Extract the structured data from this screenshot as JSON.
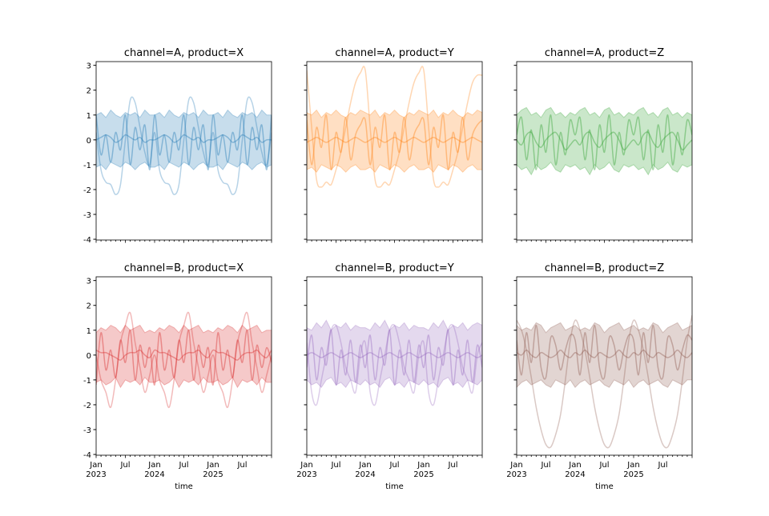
{
  "chart_data": {
    "type": "line",
    "layout": "2x3 facet grid",
    "xlabel": "time",
    "ylabel": "",
    "ylim": [
      -4.03,
      3.15
    ],
    "yticks": [
      -4,
      -3,
      -2,
      -1,
      0,
      1,
      2,
      3
    ],
    "xlim": [
      "2023-01",
      "2026-01"
    ],
    "xticks": [
      {
        "date": "2023-01",
        "label": "Jan",
        "sub": "2023"
      },
      {
        "date": "2023-07",
        "label": "Jul",
        "sub": ""
      },
      {
        "date": "2024-01",
        "label": "Jan",
        "sub": "2024"
      },
      {
        "date": "2024-07",
        "label": "Jul",
        "sub": ""
      },
      {
        "date": "2025-01",
        "label": "Jan",
        "sub": "2025"
      },
      {
        "date": "2025-07",
        "label": "Jul",
        "sub": ""
      }
    ],
    "grid": false,
    "x": [
      "2023-01",
      "2023-02",
      "2023-03",
      "2023-04",
      "2023-05",
      "2023-06",
      "2023-07",
      "2023-08",
      "2023-09",
      "2023-10",
      "2023-11",
      "2023-12",
      "2024-01",
      "2024-02",
      "2024-03",
      "2024-04",
      "2024-05",
      "2024-06",
      "2024-07",
      "2024-08",
      "2024-09",
      "2024-10",
      "2024-11",
      "2024-12",
      "2025-01",
      "2025-02",
      "2025-03",
      "2025-04",
      "2025-05",
      "2025-06",
      "2025-07",
      "2025-08",
      "2025-09",
      "2025-10",
      "2025-11",
      "2025-12",
      "2026-01"
    ],
    "panels": [
      {
        "title": "channel=A, product=X",
        "color": "#1f77b4",
        "band_low": [
          -1.1,
          -1.0,
          -1.2,
          -0.9,
          -1.0,
          -1.1,
          -0.9,
          -1.0,
          -1.2,
          -1.0,
          -0.9,
          -1.1,
          -1.1,
          -1.0,
          -1.2,
          -0.9,
          -1.0,
          -1.1,
          -0.9,
          -1.0,
          -1.2,
          -1.0,
          -0.9,
          -1.1,
          -1.1,
          -1.0,
          -1.2,
          -0.9,
          -1.0,
          -1.1,
          -0.9,
          -1.0,
          -1.2,
          -1.0,
          -0.9,
          -1.1,
          -1.0
        ],
        "band_high": [
          1.0,
          1.1,
          0.9,
          1.2,
          1.0,
          0.9,
          1.1,
          1.0,
          1.1,
          0.9,
          1.2,
          1.0,
          1.0,
          1.1,
          0.9,
          1.2,
          1.0,
          0.9,
          1.1,
          1.0,
          1.1,
          0.9,
          1.2,
          1.0,
          1.0,
          1.1,
          0.9,
          1.2,
          1.0,
          0.9,
          1.1,
          1.0,
          1.1,
          0.9,
          1.2,
          1.0,
          1.0
        ],
        "mean": [
          0,
          0.1,
          0.2,
          0.1,
          -0.1,
          0,
          0.2,
          0.1,
          0,
          0.1,
          -0.1,
          0,
          0,
          0.1,
          0.2,
          0.1,
          -0.1,
          0,
          0.2,
          0.1,
          0,
          0.1,
          -0.1,
          0,
          0,
          0.1,
          0.2,
          0.1,
          -0.1,
          0,
          0.2,
          0.1,
          0,
          0.1,
          -0.1,
          0,
          0
        ],
        "medium": [
          1.0,
          -0.6,
          0.2,
          -0.9,
          0.3,
          -0.4,
          1.0,
          -1.0,
          0.5,
          -0.4,
          0.6,
          -1.2,
          1.0,
          -0.6,
          0.2,
          -0.9,
          0.3,
          -0.4,
          1.0,
          -1.0,
          0.5,
          -0.4,
          0.6,
          -1.2,
          1.0,
          -0.6,
          0.2,
          -0.9,
          0.3,
          -0.4,
          1.0,
          -1.0,
          0.5,
          -0.4,
          0.6,
          -1.2,
          1.0
        ],
        "seasonal": [
          0.3,
          -1.2,
          -1.7,
          -1.8,
          -2.2,
          -1.8,
          0,
          1.6,
          1.5,
          0.5,
          -0.5,
          -1.0,
          0.3,
          -1.2,
          -1.7,
          -1.8,
          -2.2,
          -1.8,
          0,
          1.6,
          1.5,
          0.5,
          -0.5,
          -1.0,
          0.3,
          -1.2,
          -1.7,
          -1.8,
          -2.2,
          -1.8,
          0,
          1.6,
          1.5,
          0.5,
          -0.5,
          -1.0,
          0.3
        ]
      },
      {
        "title": "channel=A, product=Y",
        "color": "#ff7f0e",
        "band_low": [
          -1.2,
          -1.1,
          -1.3,
          -1.0,
          -1.1,
          -1.2,
          -1.0,
          -1.1,
          -1.3,
          -1.1,
          -1.0,
          -1.2,
          -1.2,
          -1.1,
          -1.3,
          -1.0,
          -1.1,
          -1.2,
          -1.0,
          -1.1,
          -1.3,
          -1.1,
          -1.0,
          -1.2,
          -1.2,
          -1.1,
          -1.3,
          -1.0,
          -1.1,
          -1.2,
          -1.0,
          -1.1,
          -1.3,
          -1.1,
          -1.0,
          -1.2,
          -1.2
        ],
        "band_high": [
          1.1,
          1.0,
          1.2,
          0.9,
          1.1,
          1.0,
          1.2,
          1.0,
          0.9,
          1.1,
          1.0,
          1.2,
          1.1,
          1.0,
          1.2,
          0.9,
          1.1,
          1.0,
          1.2,
          1.0,
          0.9,
          1.1,
          1.0,
          1.2,
          1.1,
          1.0,
          1.2,
          0.9,
          1.1,
          1.0,
          1.2,
          1.0,
          0.9,
          1.1,
          1.0,
          1.2,
          1.1
        ],
        "mean": [
          -0.1,
          0,
          0.1,
          0,
          -0.1,
          0,
          0.1,
          0,
          -0.1,
          0,
          0.1,
          0,
          -0.1,
          0,
          0.1,
          0,
          -0.1,
          0,
          0.1,
          0,
          -0.1,
          0,
          0.1,
          0,
          -0.1,
          0,
          0.1,
          0,
          -0.1,
          0,
          0.1,
          0,
          -0.1,
          0,
          0.1,
          0,
          -0.1
        ],
        "medium": [
          0.8,
          -1.0,
          0.5,
          -0.3,
          1.0,
          -1.2,
          0.3,
          -0.5,
          0.9,
          -0.8,
          0.2,
          0.6,
          0.8,
          -1.0,
          0.5,
          -0.3,
          1.0,
          -1.2,
          0.3,
          -0.5,
          0.9,
          -0.8,
          0.2,
          0.6,
          0.8,
          -1.0,
          0.5,
          -0.3,
          1.0,
          -1.2,
          0.3,
          -0.5,
          0.9,
          -0.8,
          0.2,
          0.6,
          0.8
        ],
        "seasonal": [
          2.8,
          0.5,
          -1.6,
          -1.9,
          -1.7,
          -1.8,
          -1.2,
          -0.5,
          0.5,
          1.5,
          2.3,
          2.7,
          2.8,
          0.5,
          -1.6,
          -1.9,
          -1.7,
          -1.8,
          -1.2,
          -0.5,
          0.5,
          1.5,
          2.3,
          2.7,
          2.8,
          0.5,
          -1.6,
          -1.9,
          -1.7,
          -1.8,
          -1.2,
          -0.5,
          0.5,
          1.5,
          2.3,
          2.6,
          2.6
        ]
      },
      {
        "title": "channel=A, product=Z",
        "color": "#2ca02c",
        "band_low": [
          -1.0,
          -1.2,
          -1.1,
          -1.4,
          -1.0,
          -1.2,
          -1.1,
          -0.9,
          -1.2,
          -1.3,
          -1.0,
          -1.1,
          -1.0,
          -1.2,
          -1.1,
          -1.4,
          -1.0,
          -1.2,
          -1.1,
          -0.9,
          -1.2,
          -1.3,
          -1.0,
          -1.1,
          -1.0,
          -1.2,
          -1.1,
          -1.4,
          -1.0,
          -1.2,
          -1.1,
          -0.9,
          -1.2,
          -1.3,
          -1.0,
          -1.1,
          -1.0
        ],
        "band_high": [
          1.0,
          1.2,
          1.3,
          1.0,
          1.1,
          0.9,
          1.2,
          1.3,
          1.0,
          1.1,
          0.9,
          1.1,
          1.0,
          1.2,
          1.3,
          1.0,
          1.1,
          0.9,
          1.2,
          1.3,
          1.0,
          1.1,
          0.9,
          1.1,
          1.0,
          1.2,
          1.3,
          1.0,
          1.1,
          0.9,
          1.2,
          1.3,
          1.0,
          1.1,
          0.9,
          1.1,
          1.0
        ],
        "mean": [
          0,
          -0.2,
          0.2,
          0.3,
          -0.1,
          -0.3,
          0,
          0.2,
          0.3,
          0,
          -0.4,
          -0.2,
          0,
          -0.2,
          0.2,
          0.3,
          -0.1,
          -0.3,
          0,
          0.2,
          0.3,
          0,
          -0.4,
          -0.2,
          0,
          -0.2,
          0.2,
          0.3,
          -0.1,
          -0.3,
          0,
          0.2,
          0.3,
          0,
          -0.4,
          -0.2,
          0
        ],
        "medium": [
          0.2,
          0.9,
          -0.8,
          0.4,
          -1.2,
          0.6,
          -0.5,
          1.0,
          -1.0,
          0.3,
          -0.6,
          0.8,
          0.2,
          0.9,
          -0.8,
          0.4,
          -1.2,
          0.6,
          -0.5,
          1.0,
          -1.0,
          0.3,
          -0.6,
          0.8,
          0.2,
          0.9,
          -0.8,
          0.4,
          -1.2,
          0.6,
          -0.5,
          1.0,
          -1.0,
          0.3,
          -0.6,
          0.8,
          0.2
        ],
        "seasonal": []
      },
      {
        "title": "channel=B, product=X",
        "color": "#d62728",
        "band_low": [
          -1.1,
          -1.0,
          -1.2,
          -1.1,
          -0.9,
          -1.3,
          -1.0,
          -1.1,
          -1.0,
          -1.2,
          -0.9,
          -1.1,
          -1.1,
          -1.0,
          -1.2,
          -1.1,
          -0.9,
          -1.3,
          -1.0,
          -1.1,
          -1.0,
          -1.2,
          -0.9,
          -1.1,
          -1.1,
          -1.0,
          -1.2,
          -1.1,
          -0.9,
          -1.3,
          -1.0,
          -1.1,
          -1.0,
          -1.2,
          -0.9,
          -1.1,
          -1.1
        ],
        "band_high": [
          0.9,
          1.1,
          1.0,
          1.2,
          1.1,
          0.9,
          1.2,
          1.0,
          1.1,
          1.2,
          0.9,
          1.0,
          0.9,
          1.1,
          1.0,
          1.2,
          1.1,
          0.9,
          1.2,
          1.0,
          1.1,
          1.2,
          0.9,
          1.0,
          0.9,
          1.1,
          1.0,
          1.2,
          1.1,
          0.9,
          1.2,
          1.0,
          1.1,
          1.2,
          0.9,
          1.0,
          1.0
        ],
        "mean": [
          0.2,
          0.1,
          0.1,
          0,
          -0.1,
          -0.2,
          0,
          0.1,
          0.1,
          0.2,
          0,
          -0.1,
          0.2,
          0.1,
          0.1,
          0,
          -0.1,
          -0.2,
          0,
          0.1,
          0.1,
          0.2,
          0,
          -0.1,
          0.2,
          0.1,
          0.1,
          0,
          -0.1,
          -0.2,
          0,
          0.1,
          0.1,
          0.2,
          0,
          -0.1,
          0.2
        ],
        "medium": [
          -1.2,
          0.9,
          -0.6,
          0.2,
          -0.9,
          0.6,
          -0.3,
          1.0,
          -1.0,
          0.4,
          -0.5,
          0.3,
          -1.2,
          0.9,
          -0.6,
          0.2,
          -0.9,
          0.6,
          -0.3,
          1.0,
          -1.0,
          0.4,
          -0.5,
          0.3,
          -1.2,
          0.9,
          -0.6,
          0.2,
          -0.9,
          0.6,
          -0.3,
          1.0,
          -1.0,
          0.4,
          -0.5,
          0.3,
          -0.3
        ],
        "seasonal": [
          0,
          -1.0,
          -1.5,
          -2.1,
          -1.0,
          0.5,
          1.2,
          1.7,
          0.5,
          -0.5,
          -1.5,
          -0.8,
          0,
          -1.0,
          -1.5,
          -2.1,
          -1.0,
          0.5,
          1.2,
          1.7,
          0.5,
          -0.5,
          -1.5,
          -0.8,
          0,
          -1.0,
          -1.5,
          -2.1,
          -1.0,
          0.5,
          1.2,
          1.7,
          0.5,
          -0.5,
          -1.5,
          -0.8,
          0
        ]
      },
      {
        "title": "channel=B, product=Y",
        "color": "#9467bd",
        "band_low": [
          -1.0,
          -1.2,
          -1.1,
          -1.3,
          -1.0,
          -0.9,
          -1.2,
          -1.1,
          -1.3,
          -1.0,
          -1.1,
          -1.2,
          -1.0,
          -1.2,
          -1.1,
          -1.3,
          -1.0,
          -0.9,
          -1.2,
          -1.1,
          -1.3,
          -1.0,
          -1.1,
          -1.2,
          -1.0,
          -1.2,
          -1.1,
          -1.3,
          -1.0,
          -0.9,
          -1.2,
          -1.1,
          -1.3,
          -1.0,
          -1.1,
          -1.2,
          -1.0
        ],
        "band_high": [
          1.1,
          1.0,
          1.3,
          1.1,
          1.4,
          1.0,
          1.2,
          1.1,
          1.3,
          1.0,
          1.2,
          1.1,
          1.1,
          1.0,
          1.3,
          1.1,
          1.4,
          1.0,
          1.2,
          1.1,
          1.3,
          1.0,
          1.2,
          1.1,
          1.1,
          1.0,
          1.3,
          1.1,
          1.4,
          1.0,
          1.2,
          1.1,
          1.3,
          1.0,
          1.2,
          1.3,
          1.2
        ],
        "mean": [
          0,
          0.1,
          0,
          -0.1,
          0,
          0.1,
          0,
          -0.1,
          0,
          0.1,
          0,
          -0.1,
          0,
          0.1,
          0,
          -0.1,
          0,
          0.1,
          0,
          -0.1,
          0,
          0.1,
          0,
          -0.1,
          0,
          0.1,
          0,
          -0.1,
          0,
          0.1,
          0,
          -0.1,
          0,
          0.1,
          0,
          -0.1,
          0
        ],
        "medium": [
          -0.5,
          0.8,
          -1.0,
          0.3,
          -0.4,
          1.0,
          -1.2,
          0.2,
          -0.8,
          0.6,
          -1.1,
          0.4,
          -0.5,
          0.8,
          -1.0,
          0.3,
          -0.4,
          1.0,
          -1.2,
          0.2,
          -0.8,
          0.6,
          -1.1,
          0.4,
          -0.5,
          0.8,
          -1.0,
          0.3,
          -0.4,
          1.0,
          -1.2,
          0.2,
          -0.8,
          0.6,
          -1.1,
          0.4,
          -0.5
        ],
        "seasonal": [
          0.5,
          -1.5,
          -2.0,
          -1.0,
          0,
          1.0,
          1.2,
          0.5,
          -0.5,
          -1.0,
          -1.5,
          0,
          0.5,
          -1.5,
          -2.0,
          -1.0,
          0,
          1.0,
          1.2,
          0.5,
          -0.5,
          -1.0,
          -1.5,
          0,
          0.5,
          -1.5,
          -2.0,
          -1.0,
          0,
          1.0,
          1.2,
          0.5,
          -0.5,
          -1.0,
          -1.5,
          0,
          0.5
        ]
      },
      {
        "title": "channel=B, product=Z",
        "color": "#8c564b",
        "band_low": [
          -1.3,
          -1.1,
          -1.0,
          -1.2,
          -1.1,
          -1.0,
          -1.2,
          -1.3,
          -1.0,
          -1.1,
          -1.2,
          -1.0,
          -1.3,
          -1.1,
          -1.0,
          -1.2,
          -1.1,
          -1.0,
          -1.2,
          -1.3,
          -1.0,
          -1.1,
          -1.2,
          -1.0,
          -1.3,
          -1.1,
          -1.0,
          -1.2,
          -1.1,
          -1.0,
          -1.2,
          -1.3,
          -1.0,
          -1.1,
          -1.2,
          -1.0,
          -1.0
        ],
        "band_high": [
          1.2,
          1.0,
          1.1,
          1.0,
          1.3,
          1.2,
          0.9,
          1.1,
          1.2,
          1.3,
          1.0,
          1.1,
          1.2,
          1.0,
          1.1,
          1.0,
          1.3,
          1.2,
          0.9,
          1.1,
          1.2,
          1.3,
          1.0,
          1.1,
          1.2,
          1.0,
          1.1,
          1.0,
          1.3,
          1.2,
          0.9,
          1.1,
          1.2,
          1.3,
          1.0,
          1.1,
          1.2
        ],
        "mean": [
          0.1,
          0,
          0.2,
          0,
          -0.1,
          0.1,
          0,
          -0.1,
          0,
          0.2,
          0,
          -0.1,
          0.1,
          0,
          0.2,
          0,
          -0.1,
          0.1,
          0,
          -0.1,
          0,
          0.2,
          0,
          -0.1,
          0.1,
          0,
          0.2,
          0,
          -0.1,
          0.1,
          0,
          -0.1,
          0,
          0.2,
          0,
          -0.1,
          0.1
        ],
        "medium": [
          0.6,
          -0.8,
          0.9,
          -0.3,
          1.2,
          -0.5,
          -0.9,
          0.7,
          0.4,
          -0.6,
          0.2,
          0.8,
          0.6,
          -0.8,
          0.9,
          -0.3,
          1.2,
          -0.5,
          -0.9,
          0.7,
          0.4,
          -0.6,
          0.2,
          0.8,
          0.6,
          -0.8,
          0.9,
          -0.3,
          1.2,
          -0.5,
          -0.9,
          0.7,
          0.4,
          -0.6,
          0.2,
          0.8,
          0.6
        ],
        "seasonal": [
          1.4,
          1.0,
          0.2,
          -0.9,
          -2.1,
          -3.0,
          -3.6,
          -3.7,
          -3.2,
          -2.4,
          -1.0,
          0.6,
          1.4,
          1.0,
          0.2,
          -0.9,
          -2.1,
          -3.0,
          -3.6,
          -3.7,
          -3.2,
          -2.4,
          -1.0,
          0.6,
          1.4,
          1.0,
          0.2,
          -0.9,
          -2.1,
          -3.0,
          -3.6,
          -3.7,
          -3.2,
          -2.4,
          -1.0,
          0.6,
          1.6
        ]
      }
    ]
  }
}
